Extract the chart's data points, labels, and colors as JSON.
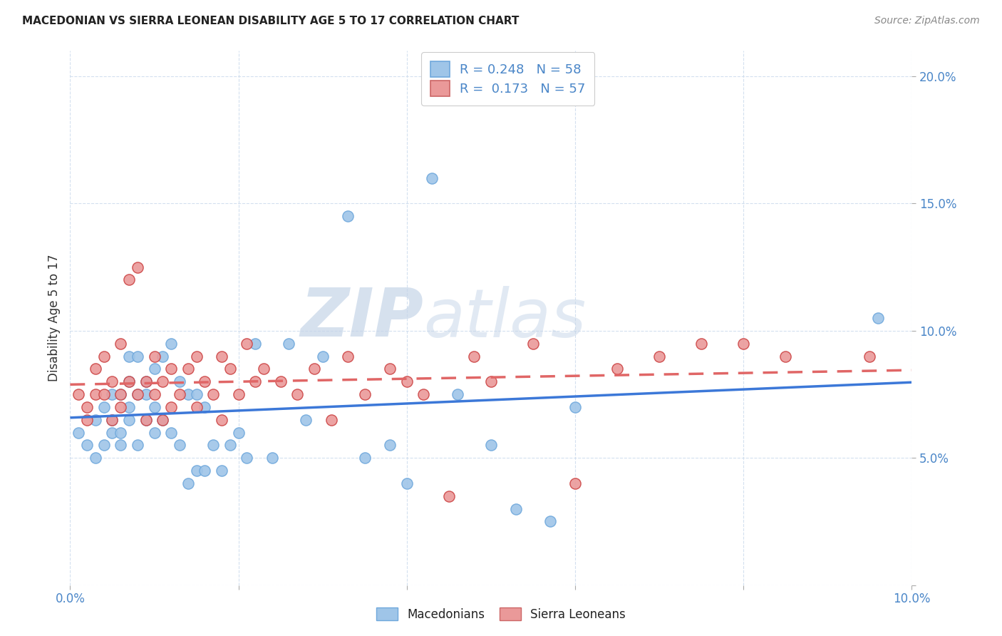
{
  "title": "MACEDONIAN VS SIERRA LEONEAN DISABILITY AGE 5 TO 17 CORRELATION CHART",
  "source": "Source: ZipAtlas.com",
  "ylabel": "Disability Age 5 to 17",
  "xlim": [
    0.0,
    0.1
  ],
  "ylim": [
    0.0,
    0.21
  ],
  "xticks": [
    0.0,
    0.02,
    0.04,
    0.06,
    0.08,
    0.1
  ],
  "yticks": [
    0.0,
    0.05,
    0.1,
    0.15,
    0.2
  ],
  "xtick_labels": [
    "0.0%",
    "",
    "",
    "",
    "",
    "10.0%"
  ],
  "ytick_labels_right": [
    "",
    "5.0%",
    "10.0%",
    "15.0%",
    "20.0%"
  ],
  "mac_color": "#9fc5e8",
  "sl_color": "#ea9999",
  "mac_line_color": "#3c78d8",
  "sl_line_color": "#e06666",
  "watermark_zip": "ZIP",
  "watermark_atlas": "atlas",
  "mac_label": "R = 0.248   N = 58",
  "sl_label": "R =  0.173   N = 57",
  "bottom_mac": "Macedonians",
  "bottom_sl": "Sierra Leoneans",
  "macedonians_x": [
    0.001,
    0.002,
    0.003,
    0.003,
    0.004,
    0.004,
    0.005,
    0.005,
    0.005,
    0.006,
    0.006,
    0.006,
    0.007,
    0.007,
    0.007,
    0.007,
    0.008,
    0.008,
    0.008,
    0.009,
    0.009,
    0.009,
    0.01,
    0.01,
    0.01,
    0.011,
    0.011,
    0.012,
    0.012,
    0.013,
    0.013,
    0.014,
    0.014,
    0.015,
    0.015,
    0.016,
    0.016,
    0.017,
    0.018,
    0.019,
    0.02,
    0.021,
    0.022,
    0.024,
    0.026,
    0.028,
    0.03,
    0.033,
    0.035,
    0.038,
    0.04,
    0.043,
    0.046,
    0.05,
    0.053,
    0.057,
    0.06,
    0.096
  ],
  "macedonians_y": [
    0.06,
    0.055,
    0.065,
    0.05,
    0.07,
    0.055,
    0.075,
    0.065,
    0.06,
    0.075,
    0.06,
    0.055,
    0.09,
    0.08,
    0.065,
    0.07,
    0.075,
    0.055,
    0.09,
    0.08,
    0.065,
    0.075,
    0.085,
    0.07,
    0.06,
    0.09,
    0.065,
    0.095,
    0.06,
    0.08,
    0.055,
    0.075,
    0.04,
    0.075,
    0.045,
    0.07,
    0.045,
    0.055,
    0.045,
    0.055,
    0.06,
    0.05,
    0.095,
    0.05,
    0.095,
    0.065,
    0.09,
    0.145,
    0.05,
    0.055,
    0.04,
    0.16,
    0.075,
    0.055,
    0.03,
    0.025,
    0.07,
    0.105
  ],
  "sierra_leoneans_x": [
    0.001,
    0.002,
    0.002,
    0.003,
    0.003,
    0.004,
    0.004,
    0.005,
    0.005,
    0.006,
    0.006,
    0.006,
    0.007,
    0.007,
    0.008,
    0.008,
    0.009,
    0.009,
    0.01,
    0.01,
    0.011,
    0.011,
    0.012,
    0.012,
    0.013,
    0.014,
    0.015,
    0.015,
    0.016,
    0.017,
    0.018,
    0.018,
    0.019,
    0.02,
    0.021,
    0.022,
    0.023,
    0.025,
    0.027,
    0.029,
    0.031,
    0.033,
    0.035,
    0.038,
    0.04,
    0.042,
    0.045,
    0.048,
    0.05,
    0.055,
    0.06,
    0.065,
    0.07,
    0.075,
    0.08,
    0.085,
    0.095
  ],
  "sierra_leoneans_y": [
    0.075,
    0.07,
    0.065,
    0.085,
    0.075,
    0.09,
    0.075,
    0.08,
    0.065,
    0.095,
    0.07,
    0.075,
    0.08,
    0.12,
    0.075,
    0.125,
    0.08,
    0.065,
    0.09,
    0.075,
    0.065,
    0.08,
    0.085,
    0.07,
    0.075,
    0.085,
    0.07,
    0.09,
    0.08,
    0.075,
    0.065,
    0.09,
    0.085,
    0.075,
    0.095,
    0.08,
    0.085,
    0.08,
    0.075,
    0.085,
    0.065,
    0.09,
    0.075,
    0.085,
    0.08,
    0.075,
    0.035,
    0.09,
    0.08,
    0.095,
    0.04,
    0.085,
    0.09,
    0.095,
    0.095,
    0.09,
    0.09
  ]
}
